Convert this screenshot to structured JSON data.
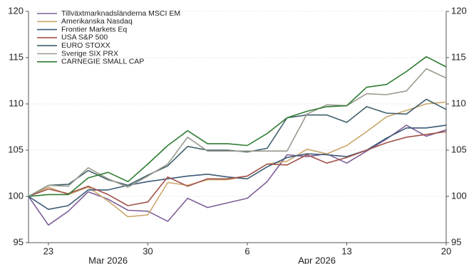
{
  "chart_data": {
    "type": "line",
    "categories": [
      null,
      "23",
      null,
      null,
      null,
      null,
      "30",
      null,
      null,
      null,
      null,
      "6",
      null,
      null,
      null,
      null,
      "13",
      null,
      null,
      null,
      null,
      "20"
    ],
    "x_group_labels": [
      "Mar 2026",
      "Apr 2026"
    ],
    "ylim": [
      95,
      120
    ],
    "yticks": [
      95,
      100,
      105,
      110,
      115,
      120
    ],
    "y2lim": [
      95,
      120
    ],
    "y2ticks": [
      95,
      100,
      105,
      110,
      115,
      120
    ],
    "grid": true,
    "legend": "upper left",
    "series": [
      {
        "name": "Tillväxtmarknadsländerna MSCI EM",
        "color": "#7e5f98",
        "values": [
          100,
          96.9,
          98.4,
          100.5,
          99.7,
          98.5,
          98.4,
          97.3,
          99.8,
          98.8,
          99.3,
          99.8,
          101.6,
          104.5,
          104.3,
          104.6,
          103.6,
          104.9,
          106.2,
          107.7,
          106.5,
          107.2
        ]
      },
      {
        "name": "Amerikanska Nasdaq",
        "color": "#c9a66b",
        "values": [
          100,
          101.0,
          100.2,
          101.0,
          99.5,
          97.8,
          98.0,
          101.5,
          101.2,
          101.8,
          101.8,
          102.2,
          103.5,
          103.8,
          105.1,
          104.6,
          105.5,
          107.0,
          108.6,
          109.3,
          110.0,
          110.2
        ]
      },
      {
        "name": "Frontier Markets Eq",
        "color": "#3c5a78",
        "values": [
          100,
          98.6,
          99.0,
          100.7,
          100.7,
          101.2,
          101.6,
          101.9,
          102.2,
          102.4,
          102.1,
          101.9,
          103.2,
          104.2,
          104.6,
          104.5,
          104.3,
          105.0,
          106.3,
          107.4,
          107.4,
          107.7
        ]
      },
      {
        "name": "USA S&P 500",
        "color": "#a0524a",
        "values": [
          100,
          100.8,
          100.3,
          101.1,
          100.2,
          99.0,
          99.4,
          102.1,
          101.1,
          101.9,
          101.9,
          102.2,
          103.5,
          103.4,
          104.5,
          103.6,
          104.2,
          105.0,
          105.8,
          106.4,
          106.7,
          107.0
        ]
      },
      {
        "name": "EURO STOXX",
        "color": "#3f5f6a",
        "values": [
          100,
          101.2,
          101.3,
          102.8,
          101.8,
          101.2,
          102.3,
          103.3,
          105.4,
          105.0,
          105.0,
          104.8,
          105.2,
          108.5,
          108.8,
          108.8,
          108.0,
          109.7,
          109.0,
          108.9,
          110.5,
          109.4
        ]
      },
      {
        "name": "Sverige SIX PRX",
        "color": "#9a9a90",
        "values": [
          100,
          101.2,
          101.1,
          103.1,
          101.9,
          101.0,
          102.2,
          103.5,
          106.4,
          104.9,
          104.9,
          104.9,
          104.9,
          104.9,
          108.9,
          109.9,
          109.8,
          111.1,
          111.0,
          111.4,
          113.8,
          112.8
        ]
      },
      {
        "name": "CARNEGIE SMALL CAP",
        "color": "#2e7d32",
        "values": [
          100,
          100.2,
          100.2,
          102.0,
          102.6,
          101.6,
          103.5,
          105.5,
          107.1,
          105.7,
          105.7,
          105.5,
          106.8,
          108.5,
          109.2,
          109.7,
          109.8,
          111.8,
          112.1,
          113.5,
          115.1,
          114.0
        ]
      }
    ]
  }
}
